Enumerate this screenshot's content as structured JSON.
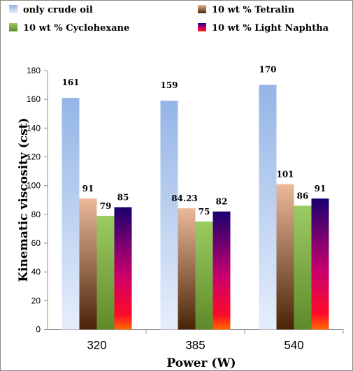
{
  "chart_data": {
    "type": "bar",
    "categories": [
      "320",
      "385",
      "540"
    ],
    "series": [
      {
        "name": "only crude oil",
        "values": [
          161,
          159,
          170
        ],
        "labels": [
          "161",
          "159",
          "170"
        ]
      },
      {
        "name": "10 wt % Tetralin",
        "values": [
          91,
          84.23,
          101
        ],
        "labels": [
          "91",
          "84.23",
          "101"
        ]
      },
      {
        "name": "10 wt %  Cyclohexane",
        "values": [
          79,
          75,
          86
        ],
        "labels": [
          "79",
          "75",
          "86"
        ]
      },
      {
        "name": "10 wt % Light Naphtha",
        "values": [
          85,
          82,
          91
        ],
        "labels": [
          "85",
          "82",
          "91"
        ]
      }
    ],
    "xlabel": "Power (W)",
    "ylabel": "Kinematic viscosity (cst)",
    "ylim": [
      0,
      180
    ],
    "yticks": [
      "0",
      "20",
      "40",
      "60",
      "80",
      "100",
      "120",
      "140",
      "160",
      "180"
    ],
    "grid": false,
    "legend_position": "top",
    "colors": {
      "only crude oil": [
        "#e6eefb",
        "#94b5e6"
      ],
      "10 wt % Tetralin": [
        "#4a2408",
        "#eab99a"
      ],
      "10 wt %  Cyclohexane": [
        "#5f8a2a",
        "#9ccb62"
      ],
      "10 wt % Light Naphtha": [
        "#ff6a00",
        "#ff0a2a",
        "#c8006e",
        "#1a0070"
      ]
    }
  }
}
